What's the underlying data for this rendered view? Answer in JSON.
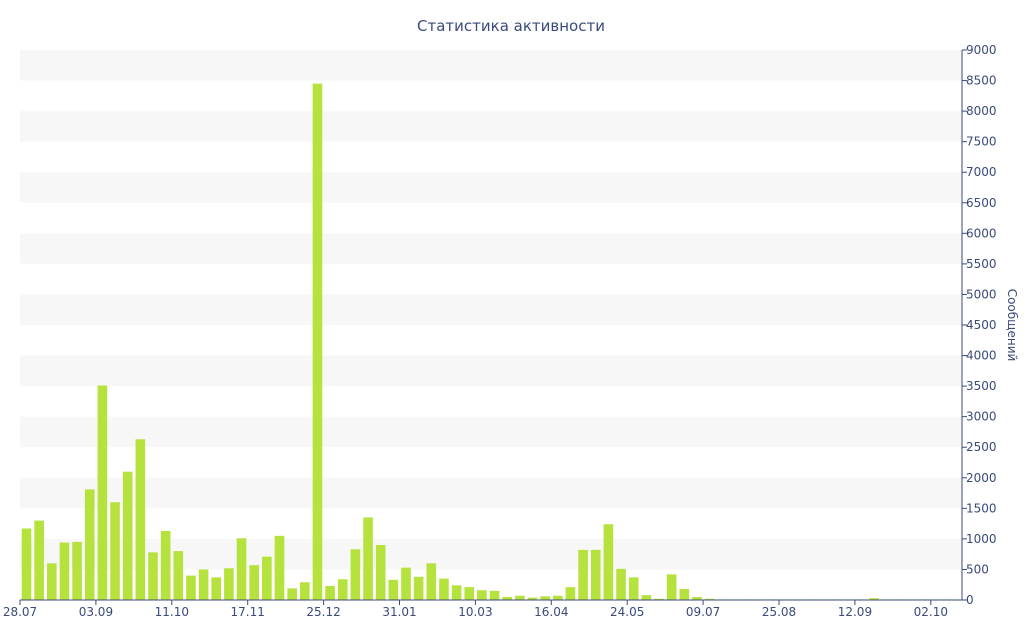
{
  "chart_data": {
    "type": "bar",
    "title": "Статистика активности",
    "ylabel": "Сообщений",
    "y_axis_side": "right",
    "ylim": [
      0,
      9000
    ],
    "y_ticks": [
      0,
      500,
      1000,
      1500,
      2000,
      2500,
      3000,
      3500,
      4000,
      4500,
      5000,
      5500,
      6000,
      6500,
      7000,
      7500,
      8000,
      8500,
      9000
    ],
    "x_tick_labels": [
      {
        "index": 0,
        "label": "28.07"
      },
      {
        "index": 6,
        "label": "03.09"
      },
      {
        "index": 12,
        "label": "11.10"
      },
      {
        "index": 18,
        "label": "17.11"
      },
      {
        "index": 24,
        "label": "25.12"
      },
      {
        "index": 30,
        "label": "31.01"
      },
      {
        "index": 36,
        "label": "10.03"
      },
      {
        "index": 42,
        "label": "16.04"
      },
      {
        "index": 48,
        "label": "24.05"
      },
      {
        "index": 54,
        "label": "09.07"
      },
      {
        "index": 60,
        "label": "25.08"
      },
      {
        "index": 66,
        "label": "12.09"
      },
      {
        "index": 72,
        "label": "02.10"
      }
    ],
    "values": [
      1170,
      1300,
      600,
      940,
      950,
      1810,
      3510,
      1600,
      2100,
      2630,
      780,
      1130,
      800,
      400,
      500,
      370,
      520,
      1010,
      570,
      710,
      1050,
      190,
      290,
      8450,
      230,
      340,
      830,
      1350,
      900,
      330,
      530,
      380,
      600,
      350,
      240,
      210,
      160,
      150,
      50,
      70,
      40,
      60,
      70,
      210,
      820,
      820,
      1240,
      510,
      370,
      80,
      20,
      420,
      180,
      50,
      20,
      10,
      10,
      10,
      10,
      10,
      10,
      10,
      10,
      10,
      10,
      10,
      10,
      30,
      10,
      10,
      10,
      10,
      10,
      10
    ],
    "bar_color": "#b5e23c",
    "band_color": "#f7f7f7",
    "axis_color": "#3b4a7a",
    "grid": "alternating bands"
  }
}
